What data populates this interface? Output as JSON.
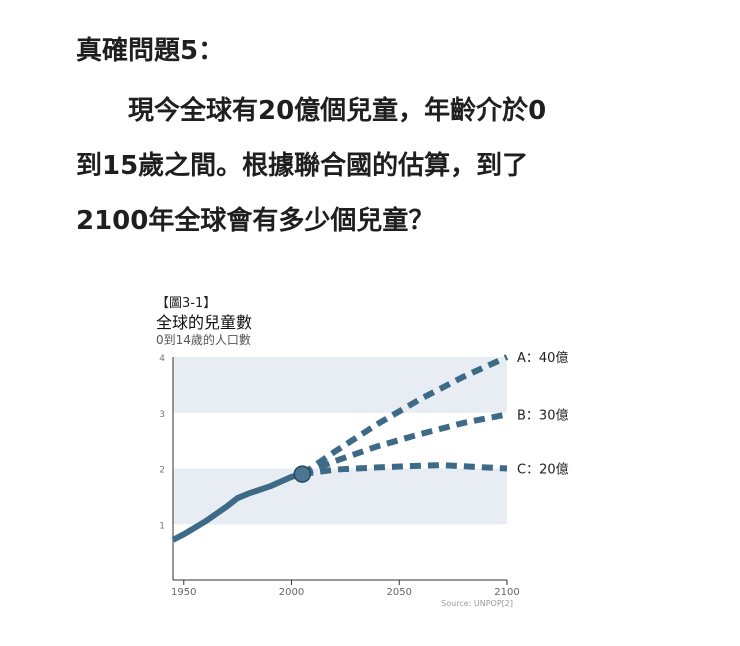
{
  "question": {
    "title": "真確問題5：",
    "lines": [
      "　　現今全球有20億個兒童，年齡介於0",
      "到15歲之間。根據聯合國的估算，到了",
      "2100年全球會有多少個兒童？"
    ]
  },
  "figure": {
    "label": "【圖3-1】",
    "title": "全球的兒童數",
    "subtitle": "0到14歲的人口數",
    "source": "Source: UNPOP[2]"
  },
  "colors": {
    "line": "#3d6a86",
    "band": "#e7edf2",
    "marker_fill": "#4a7690",
    "marker_stroke": "#23475c"
  },
  "chart_data": {
    "type": "line",
    "title": "全球的兒童數",
    "subtitle": "0到14歲的人口數",
    "xlim": [
      1950,
      2100
    ],
    "ylim": [
      0,
      4
    ],
    "x_ticks": [
      1950,
      2000,
      2050,
      2100
    ],
    "y_ticks": [
      1,
      2,
      3,
      4
    ],
    "bands": [
      [
        1,
        2
      ],
      [
        3,
        4
      ]
    ],
    "historical": {
      "x": [
        1945,
        1950,
        1960,
        1970,
        1975,
        1980,
        1990,
        2000,
        2005
      ],
      "y": [
        0.72,
        0.82,
        1.05,
        1.32,
        1.47,
        1.55,
        1.68,
        1.85,
        1.9
      ]
    },
    "marker": {
      "x": 2005,
      "y": 1.9
    },
    "series": [
      {
        "name": "A：40億",
        "x": [
          2005,
          2020,
          2040,
          2060,
          2080,
          2100
        ],
        "y": [
          1.9,
          2.3,
          2.8,
          3.25,
          3.65,
          4.0
        ]
      },
      {
        "name": "B：30億",
        "x": [
          2005,
          2020,
          2040,
          2060,
          2080,
          2100
        ],
        "y": [
          1.9,
          2.13,
          2.4,
          2.62,
          2.82,
          2.97
        ]
      },
      {
        "name": "C：20億",
        "x": [
          2005,
          2020,
          2040,
          2060,
          2070,
          2080,
          2100
        ],
        "y": [
          1.9,
          1.98,
          2.02,
          2.05,
          2.06,
          2.04,
          2.0
        ]
      }
    ]
  }
}
